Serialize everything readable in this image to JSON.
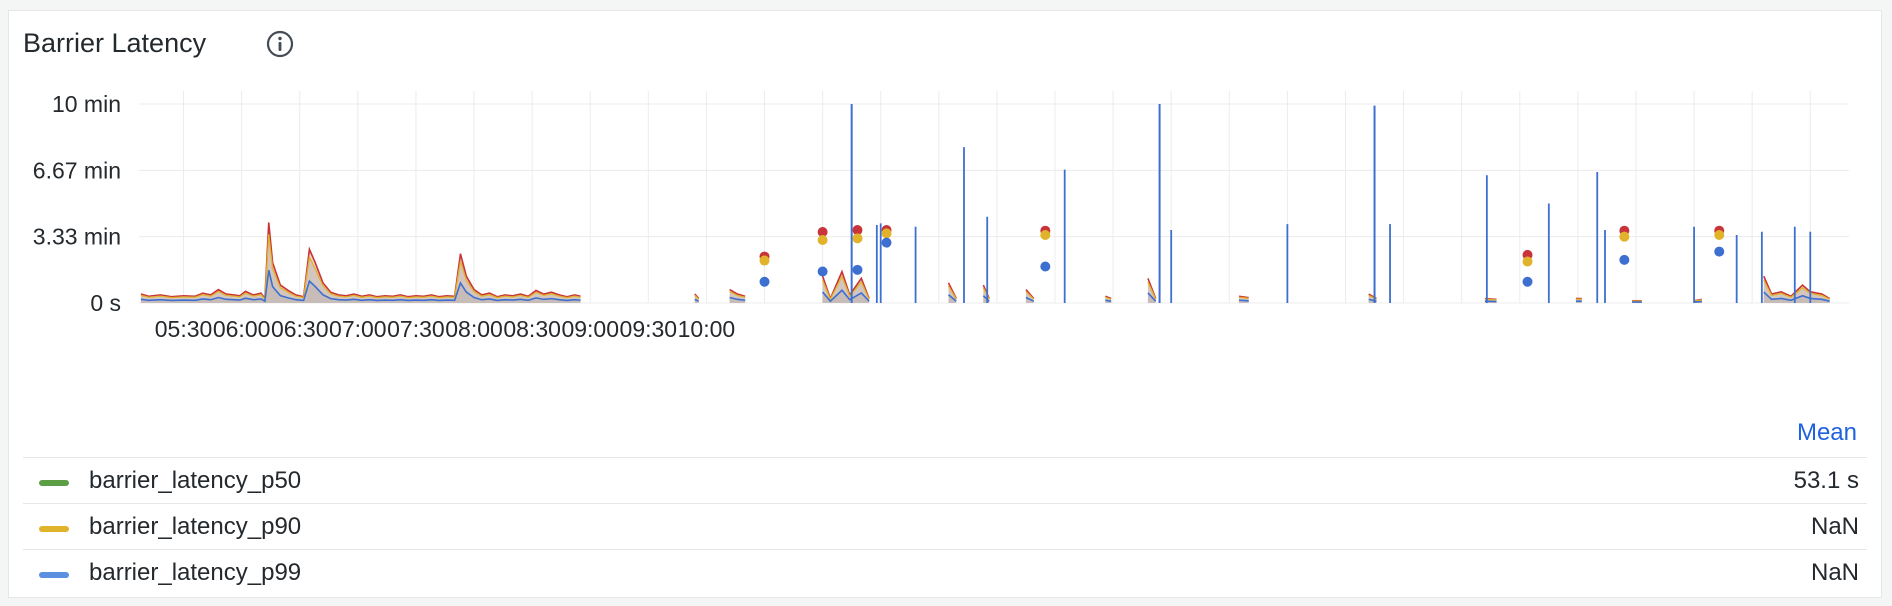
{
  "panel": {
    "title": "Barrier Latency",
    "info_icon": "info-circle-icon"
  },
  "chart_data": {
    "type": "area",
    "title": "Barrier Latency",
    "xlabel": "",
    "ylabel": "",
    "x_tick_labels": [
      "05:30",
      "06:00",
      "06:30",
      "07:00",
      "07:30",
      "08:00",
      "08:30",
      "09:00",
      "09:30",
      "10:00"
    ],
    "y_tick_labels": [
      "0 s",
      "3.33 min",
      "6.67 min",
      "10 min"
    ],
    "y_tick_values_seconds": [
      0,
      200,
      400,
      600
    ],
    "ylim_seconds": [
      0,
      600
    ],
    "xlim_minutes_of_day": [
      307,
      1190
    ],
    "grid": true,
    "legend_placement": "bottom",
    "series": [
      {
        "name": "barrier_latency_p50",
        "color": "#5c9e46",
        "mean": "53.1 s",
        "points": [
          [
            308,
            20
          ],
          [
            312,
            15
          ],
          [
            318,
            18
          ],
          [
            324,
            14
          ],
          [
            330,
            16
          ],
          [
            336,
            15
          ],
          [
            340,
            22
          ],
          [
            344,
            18
          ],
          [
            348,
            30
          ],
          [
            352,
            20
          ],
          [
            356,
            18
          ],
          [
            359,
            16
          ],
          [
            362,
            26
          ],
          [
            366,
            18
          ],
          [
            370,
            22
          ],
          [
            372,
            10
          ],
          [
            374,
            180
          ],
          [
            376,
            90
          ],
          [
            380,
            40
          ],
          [
            384,
            28
          ],
          [
            388,
            18
          ],
          [
            392,
            14
          ],
          [
            395,
            120
          ],
          [
            398,
            90
          ],
          [
            402,
            45
          ],
          [
            406,
            24
          ],
          [
            410,
            18
          ],
          [
            414,
            16
          ],
          [
            418,
            20
          ],
          [
            422,
            15
          ],
          [
            426,
            18
          ],
          [
            430,
            14
          ],
          [
            434,
            16
          ],
          [
            438,
            15
          ],
          [
            442,
            18
          ],
          [
            446,
            14
          ],
          [
            450,
            16
          ],
          [
            454,
            15
          ],
          [
            458,
            18
          ],
          [
            462,
            14
          ],
          [
            466,
            16
          ],
          [
            470,
            15
          ],
          [
            473,
            110
          ],
          [
            476,
            60
          ],
          [
            480,
            30
          ],
          [
            484,
            18
          ],
          [
            488,
            22
          ],
          [
            492,
            14
          ],
          [
            496,
            18
          ],
          [
            500,
            16
          ],
          [
            504,
            20
          ],
          [
            508,
            15
          ],
          [
            512,
            28
          ],
          [
            516,
            20
          ],
          [
            520,
            24
          ],
          [
            524,
            18
          ],
          [
            528,
            14
          ],
          [
            532,
            18
          ],
          [
            535,
            15
          ],
          [
            594,
            20
          ],
          [
            596,
            10
          ],
          [
            612,
            30
          ],
          [
            616,
            20
          ],
          [
            620,
            15
          ],
          [
            660,
            60
          ],
          [
            664,
            10
          ],
          [
            670,
            70
          ],
          [
            674,
            18
          ],
          [
            680,
            55
          ],
          [
            684,
            10
          ],
          [
            725,
            45
          ],
          [
            729,
            10
          ],
          [
            743,
            40
          ],
          [
            746,
            10
          ],
          [
            765,
            30
          ],
          [
            769,
            10
          ],
          [
            806,
            15
          ],
          [
            809,
            10
          ],
          [
            828,
            55
          ],
          [
            832,
            10
          ],
          [
            875,
            15
          ],
          [
            880,
            12
          ],
          [
            942,
            20
          ],
          [
            946,
            10
          ],
          [
            1002,
            10
          ],
          [
            1008,
            8
          ],
          [
            1049,
            10
          ],
          [
            1052,
            10
          ],
          [
            1078,
            5
          ],
          [
            1083,
            5
          ],
          [
            1110,
            5
          ],
          [
            1114,
            8
          ],
          [
            1146,
            60
          ],
          [
            1150,
            20
          ],
          [
            1155,
            25
          ],
          [
            1160,
            15
          ],
          [
            1166,
            40
          ],
          [
            1170,
            25
          ],
          [
            1176,
            20
          ],
          [
            1180,
            10
          ]
        ]
      },
      {
        "name": "barrier_latency_p90",
        "color": "#e0b32b",
        "mean": "NaN",
        "points": []
      },
      {
        "name": "barrier_latency_p99",
        "color": "#5b8fe0",
        "mean": "NaN",
        "points": []
      }
    ],
    "isolated_points": [
      {
        "x": 630,
        "p99": 140,
        "p90": 128,
        "p50": 64
      },
      {
        "x": 660,
        "p99": 214,
        "p90": 190,
        "p50": 95
      },
      {
        "x": 678,
        "p99": 220,
        "p90": 195,
        "p50": 100
      },
      {
        "x": 693,
        "p99": 220,
        "p90": 210,
        "p50": 182
      },
      {
        "x": 775,
        "p99": 218,
        "p90": 205,
        "p50": 110
      },
      {
        "x": 1024,
        "p99": 145,
        "p90": 125,
        "p50": 64
      },
      {
        "x": 1074,
        "p99": 218,
        "p90": 200,
        "p50": 130
      },
      {
        "x": 1123,
        "p99": 218,
        "p90": 205,
        "p50": 155
      }
    ]
  },
  "legend": {
    "header": "Mean"
  }
}
